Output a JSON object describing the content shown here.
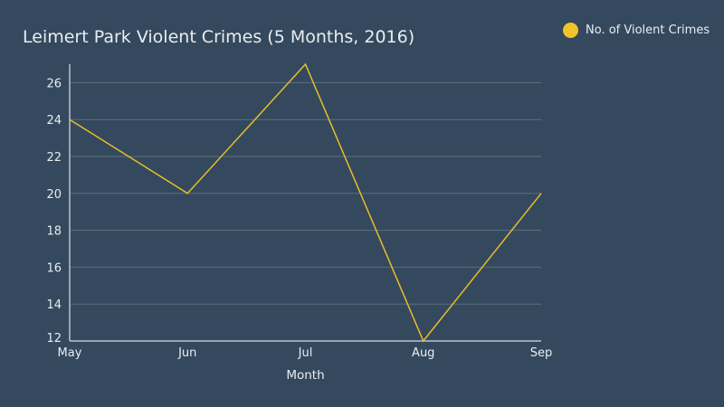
{
  "colors": {
    "background": "#34495e",
    "text": "#e8edf1",
    "grid": "#5d6e7f",
    "axis_line": "#98a5b0",
    "series_line": "#e9bd28",
    "legend_marker": "#f0c32c"
  },
  "legend": {
    "label": "No. of Violent Crimes"
  },
  "chart_data": {
    "type": "line",
    "title": "Leimert Park Violent Crimes (5 Months, 2016)",
    "xlabel": "Month",
    "ylabel": "",
    "x": [
      "May",
      "Jun",
      "Jul",
      "Aug",
      "Sep"
    ],
    "series": [
      {
        "name": "No. of Violent Crimes",
        "values": [
          24,
          20,
          27,
          12,
          20
        ]
      }
    ],
    "ylim": [
      12,
      27
    ],
    "yticks": [
      12,
      14,
      16,
      18,
      20,
      22,
      24,
      26
    ],
    "grid": true,
    "legend_position": "top-right"
  }
}
